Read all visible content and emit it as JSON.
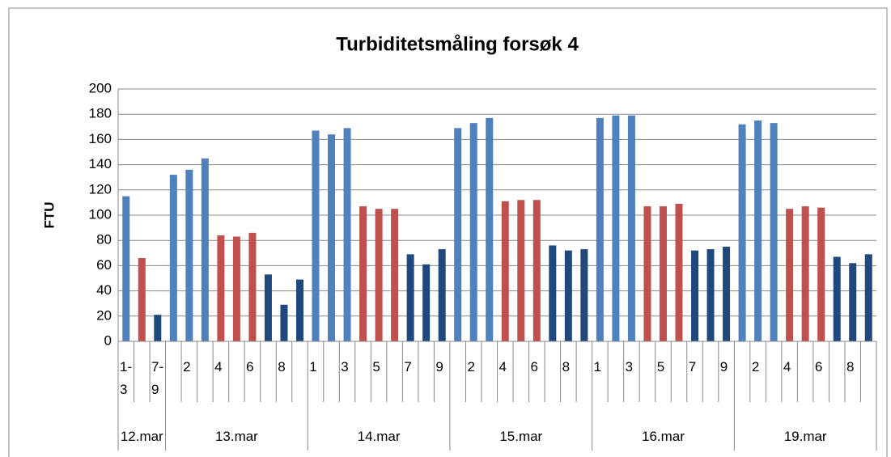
{
  "chart_data": {
    "type": "bar",
    "title": "Turbiditetsmåling forsøk 4",
    "y_label": "FTU",
    "groups": [
      {
        "name": "12.mar",
        "categories": [
          "1-3",
          null,
          "7-9"
        ]
      },
      {
        "name": "13.mar",
        "categories": [
          null,
          "2",
          null,
          "4",
          null,
          "6",
          null,
          "8",
          null
        ]
      },
      {
        "name": "14.mar",
        "categories": [
          "1",
          null,
          "3",
          null,
          "5",
          null,
          "7",
          null,
          "9"
        ]
      },
      {
        "name": "15.mar",
        "categories": [
          null,
          "2",
          null,
          "4",
          null,
          "6",
          null,
          "8",
          null
        ]
      },
      {
        "name": "16.mar",
        "categories": [
          "1",
          null,
          "3",
          null,
          "5",
          null,
          "7",
          null,
          "9"
        ]
      },
      {
        "name": "19.mar",
        "categories": [
          null,
          "2",
          null,
          "4",
          null,
          "6",
          null,
          "8",
          null
        ]
      }
    ],
    "values": [
      115,
      66,
      21,
      132,
      136,
      145,
      84,
      83,
      86,
      53,
      29,
      49,
      167,
      164,
      169,
      107,
      105,
      105,
      69,
      61,
      73,
      169,
      173,
      177,
      111,
      112,
      112,
      76,
      72,
      73,
      177,
      179,
      179,
      107,
      107,
      109,
      72,
      73,
      75,
      172,
      175,
      173,
      105,
      107,
      106,
      67,
      62,
      69
    ],
    "bar_colors": [
      "#4f81bd",
      "#c0504d",
      "#1f497d",
      "#4f81bd",
      "#4f81bd",
      "#4f81bd",
      "#c0504d",
      "#c0504d",
      "#c0504d",
      "#1f497d",
      "#1f497d",
      "#1f497d",
      "#4f81bd",
      "#4f81bd",
      "#4f81bd",
      "#c0504d",
      "#c0504d",
      "#c0504d",
      "#1f497d",
      "#1f497d",
      "#1f497d",
      "#4f81bd",
      "#4f81bd",
      "#4f81bd",
      "#c0504d",
      "#c0504d",
      "#c0504d",
      "#1f497d",
      "#1f497d",
      "#1f497d",
      "#4f81bd",
      "#4f81bd",
      "#4f81bd",
      "#c0504d",
      "#c0504d",
      "#c0504d",
      "#1f497d",
      "#1f497d",
      "#1f497d",
      "#4f81bd",
      "#4f81bd",
      "#4f81bd",
      "#c0504d",
      "#c0504d",
      "#c0504d",
      "#1f497d",
      "#1f497d",
      "#1f497d"
    ],
    "ylim": [
      0,
      200
    ],
    "yticks": [
      0,
      20,
      40,
      60,
      80,
      100,
      120,
      140,
      160,
      180,
      200
    ],
    "grid": true
  }
}
